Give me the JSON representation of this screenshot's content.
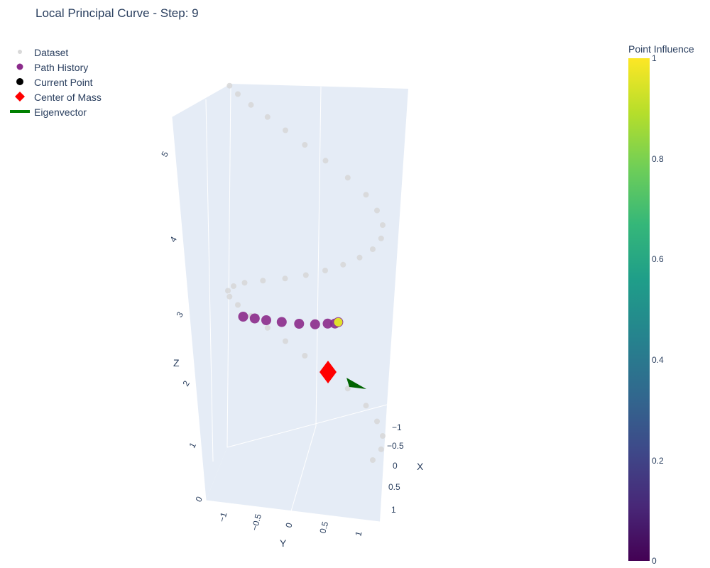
{
  "chart_data": {
    "type": "scatter3d",
    "title": "Local Principal Curve - Step: 9",
    "legend": {
      "placement": "top-left",
      "entries": [
        {
          "name": "Dataset",
          "symbol": "circle",
          "color": "#cccccc"
        },
        {
          "name": "Path History",
          "symbol": "circle",
          "color": "#8b2b8b"
        },
        {
          "name": "Current Point",
          "symbol": "circle",
          "color": "#000000"
        },
        {
          "name": "Center of Mass",
          "symbol": "diamond",
          "color": "#ff0000"
        },
        {
          "name": "Eigenvector",
          "symbol": "line",
          "color": "#008000"
        }
      ]
    },
    "axes": {
      "x": {
        "label": "X",
        "range": [
          -1,
          1
        ],
        "ticks": [
          "−1",
          "−0.5",
          "0",
          "0.5",
          "1"
        ]
      },
      "y": {
        "label": "Y",
        "range": [
          -1,
          1
        ],
        "ticks": [
          "−1",
          "−0.5",
          "0",
          "0.5",
          "1"
        ]
      },
      "z": {
        "label": "Z",
        "range": [
          0,
          5
        ],
        "ticks": [
          "0",
          "1",
          "2",
          "3",
          "4",
          "5"
        ]
      }
    },
    "colorbar": {
      "title": "Point Influence",
      "colorscale": "Viridis",
      "range": [
        0,
        1
      ],
      "ticks": [
        "0",
        "0.2",
        "0.4",
        "0.6",
        "0.8",
        "1"
      ]
    },
    "series": [
      {
        "name": "Dataset",
        "points": [
          [
            1,
            0,
            0.3
          ],
          [
            0.95,
            0.3,
            0.45
          ],
          [
            0.8,
            0.6,
            0.6
          ],
          [
            0.6,
            0.8,
            0.75
          ],
          [
            0.35,
            0.95,
            0.9
          ],
          [
            0.05,
            1,
            1.05
          ],
          [
            -0.25,
            0.95,
            1.2
          ],
          [
            -0.5,
            0.85,
            1.35
          ],
          [
            -0.7,
            0.7,
            1.5
          ],
          [
            -0.85,
            0.5,
            1.65
          ],
          [
            -0.95,
            0.25,
            1.8
          ],
          [
            -1,
            0,
            1.95
          ],
          [
            -0.95,
            -0.3,
            2.1
          ],
          [
            -0.8,
            -0.6,
            2.25
          ],
          [
            -0.6,
            -0.8,
            2.4
          ],
          [
            -0.35,
            -0.95,
            2.55
          ],
          [
            -0.05,
            -1,
            2.7
          ],
          [
            0.25,
            -0.95,
            2.85
          ],
          [
            0.5,
            -0.85,
            3.0
          ],
          [
            0.7,
            -0.7,
            3.15
          ],
          [
            0.85,
            -0.5,
            3.3
          ],
          [
            0.95,
            -0.25,
            3.45
          ],
          [
            1,
            0,
            3.6
          ],
          [
            0.95,
            0.3,
            3.75
          ],
          [
            0.8,
            0.6,
            3.9
          ],
          [
            0.6,
            0.8,
            4.05
          ],
          [
            0.35,
            0.95,
            4.2
          ],
          [
            0.05,
            1,
            4.35
          ],
          [
            -0.25,
            0.95,
            4.5
          ],
          [
            -0.5,
            0.85,
            4.65
          ],
          [
            -0.7,
            0.7,
            4.8
          ],
          [
            -0.85,
            0.5,
            4.95
          ],
          [
            -0.95,
            0.25,
            5.1
          ],
          [
            -1,
            0,
            5.25
          ],
          [
            -0.95,
            -0.3,
            5.4
          ]
        ]
      },
      {
        "name": "Path History",
        "points": [
          [
            -0.4,
            -0.9,
            2.0
          ],
          [
            -0.2,
            -0.95,
            2.05
          ],
          [
            0.0,
            -1.0,
            2.1
          ],
          [
            0.2,
            -0.95,
            2.15
          ],
          [
            0.4,
            -0.85,
            2.2
          ],
          [
            0.55,
            -0.7,
            2.25
          ],
          [
            0.65,
            -0.55,
            2.3
          ],
          [
            0.7,
            -0.45,
            2.32
          ],
          [
            0.72,
            -0.4,
            2.35
          ]
        ]
      },
      {
        "name": "Current Point",
        "points": [
          [
            0.72,
            -0.4,
            2.35
          ]
        ]
      },
      {
        "name": "Center of Mass",
        "points": [
          [
            0.72,
            -0.3,
            2.35
          ]
        ]
      }
    ]
  }
}
